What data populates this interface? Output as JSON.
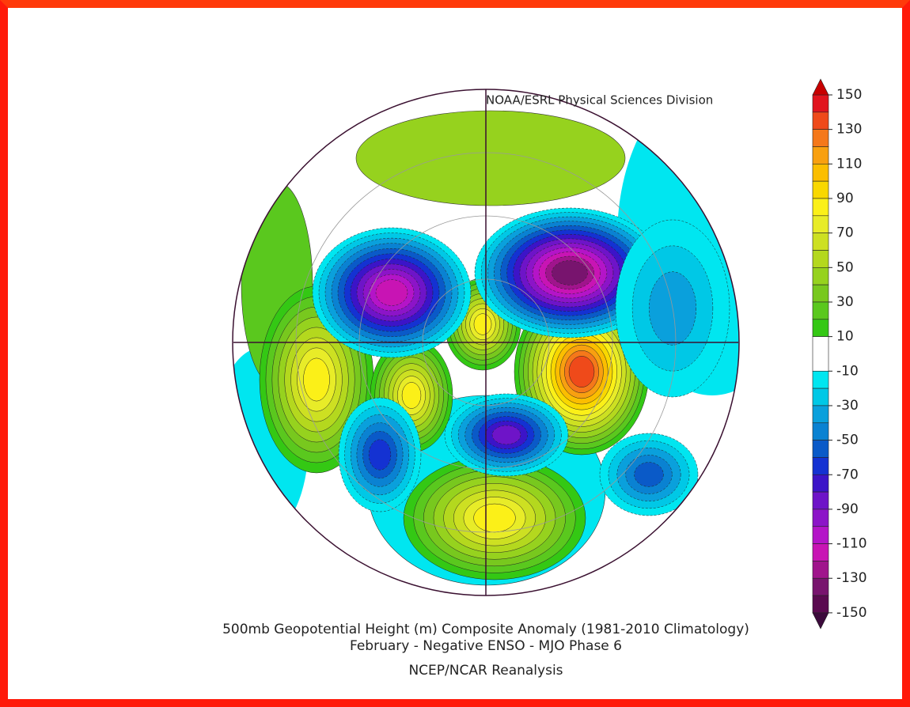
{
  "header": {
    "credit": "NOAA/ESRL Physical Sciences Division"
  },
  "map": {
    "title": "500mb Geopotential Height (m) Composite Anomaly (1981-2010 Climatology)",
    "subtitle": "February - Negative ENSO - MJO Phase 6",
    "source": "NCEP/NCAR Reanalysis"
  },
  "colorbar": {
    "labels": [
      150,
      130,
      110,
      90,
      70,
      50,
      30,
      10,
      -10,
      -30,
      -50,
      -70,
      -90,
      -110,
      -130,
      -150
    ],
    "over_color": "#c80000",
    "under_color": "#3c0a3c",
    "colors": [
      "#e1141e",
      "#ef4a1a",
      "#f5781a",
      "#f8a010",
      "#fbbe00",
      "#f9d800",
      "#fbf018",
      "#e8ec28",
      "#cde022",
      "#b4d81e",
      "#96d21e",
      "#78c81e",
      "#5ac81e",
      "#34c814",
      "#ffffff",
      "#00e6f0",
      "#00c8e6",
      "#0aa0dc",
      "#0a82d2",
      "#0a5ac8",
      "#1432d2",
      "#3c14c8",
      "#6e14c8",
      "#8c14c8",
      "#b414c8",
      "#c814b4",
      "#a0148c",
      "#78146e",
      "#5a0a50"
    ]
  }
}
